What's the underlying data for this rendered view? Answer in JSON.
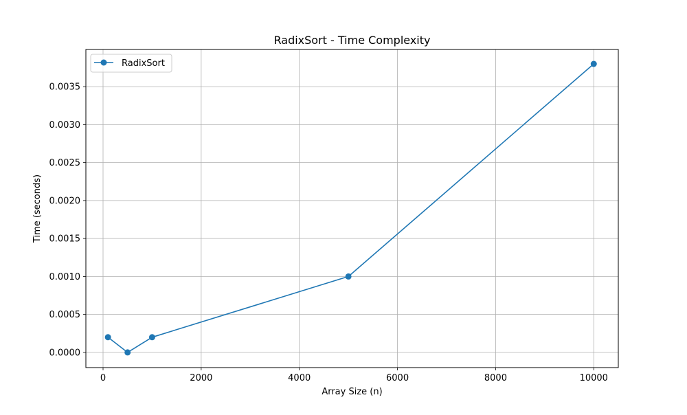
{
  "chart_data": {
    "type": "line",
    "title": "RadixSort - Time Complexity",
    "xlabel": "Array Size (n)",
    "ylabel": "Time (seconds)",
    "xlim": [
      -350,
      10500
    ],
    "ylim": [
      -0.0002,
      0.00399
    ],
    "xticks": [
      0,
      2000,
      4000,
      6000,
      8000,
      10000
    ],
    "xtick_labels": [
      "0",
      "2000",
      "4000",
      "6000",
      "8000",
      "10000"
    ],
    "yticks": [
      0.0,
      0.0005,
      0.001,
      0.0015,
      0.002,
      0.0025,
      0.003,
      0.0035
    ],
    "ytick_labels": [
      "0.0000",
      "0.0005",
      "0.0010",
      "0.0015",
      "0.0020",
      "0.0025",
      "0.0030",
      "0.0035"
    ],
    "grid": true,
    "legend_position": "upper-left",
    "series": [
      {
        "name": "RadixSort",
        "color": "#1f77b4",
        "marker": "circle",
        "x": [
          100,
          500,
          1000,
          5000,
          10000
        ],
        "y": [
          0.0002,
          0.0,
          0.0002,
          0.001,
          0.0038
        ]
      }
    ]
  }
}
